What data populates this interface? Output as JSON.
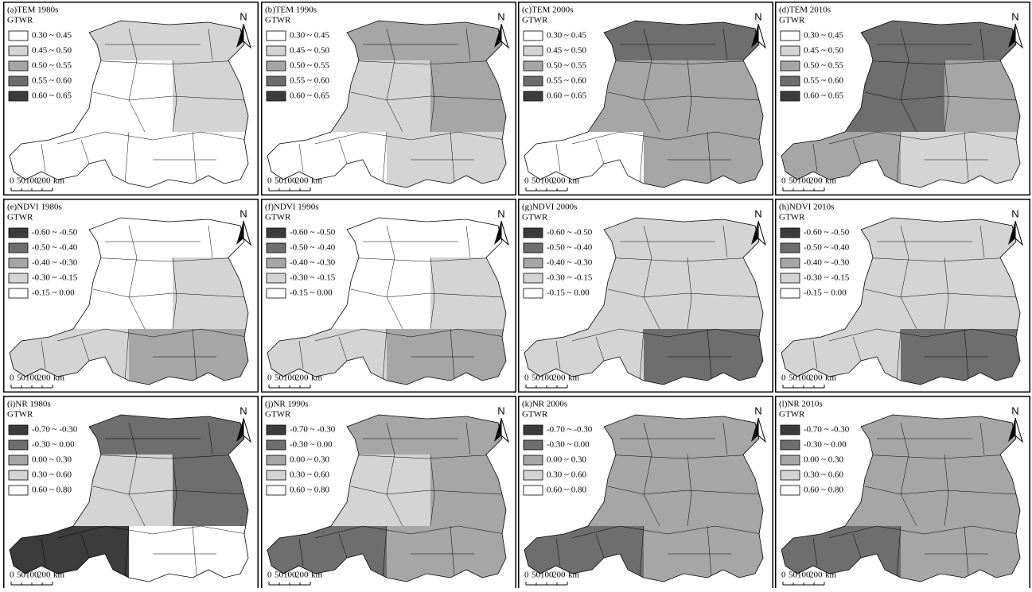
{
  "panels": [
    {
      "title": "(a)TEM 1980s",
      "legend": {
        "title": "GTWR",
        "items": [
          {
            "label": "0.30 ~ 0.45",
            "color": "#ffffff"
          },
          {
            "label": "0.45 ~ 0.50",
            "color": "#d4d4d4"
          },
          {
            "label": "0.50 ~ 0.55",
            "color": "#a6a6a6"
          },
          {
            "label": "0.55 ~ 0.60",
            "color": "#6e6e6e"
          },
          {
            "label": "0.60 ~ 0.65",
            "color": "#3c3c3c"
          }
        ]
      },
      "north": "N",
      "scale_bar": [
        "0",
        "50100",
        "200",
        "km"
      ]
    },
    {
      "title": "(b)TEM 1990s",
      "legend": {
        "title": "GTWR",
        "items": [
          {
            "label": "0.30 ~ 0.45",
            "color": "#ffffff"
          },
          {
            "label": "0.45 ~ 0.50",
            "color": "#d4d4d4"
          },
          {
            "label": "0.50 ~ 0.55",
            "color": "#a6a6a6"
          },
          {
            "label": "0.55 ~ 0.60",
            "color": "#6e6e6e"
          },
          {
            "label": "0.60 ~ 0.65",
            "color": "#3c3c3c"
          }
        ]
      },
      "north": "N",
      "scale_bar": [
        "0",
        "50100",
        "200",
        "km"
      ]
    },
    {
      "title": "(c)TEM 2000s",
      "legend": {
        "title": "GTWR",
        "items": [
          {
            "label": "0.30 ~ 0.45",
            "color": "#ffffff"
          },
          {
            "label": "0.45 ~ 0.50",
            "color": "#d4d4d4"
          },
          {
            "label": "0.50 ~ 0.55",
            "color": "#a6a6a6"
          },
          {
            "label": "0.55 ~ 0.60",
            "color": "#6e6e6e"
          },
          {
            "label": "0.60 ~ 0.65",
            "color": "#3c3c3c"
          }
        ]
      },
      "north": "N",
      "scale_bar": [
        "0",
        "50100",
        "200",
        "km"
      ]
    },
    {
      "title": "(d)TEM 2010s",
      "legend": {
        "title": "GTWR",
        "items": [
          {
            "label": "0.30 ~ 0.45",
            "color": "#ffffff"
          },
          {
            "label": "0.45 ~ 0.50",
            "color": "#d4d4d4"
          },
          {
            "label": "0.50 ~ 0.55",
            "color": "#a6a6a6"
          },
          {
            "label": "0.55 ~ 0.60",
            "color": "#6e6e6e"
          },
          {
            "label": "0.60 ~ 0.65",
            "color": "#3c3c3c"
          }
        ]
      },
      "north": "N",
      "scale_bar": [
        "0",
        "50100",
        "200",
        "km"
      ]
    },
    {
      "title": "(e)NDVI 1980s",
      "legend": {
        "title": "GTWR",
        "items": [
          {
            "label": "-0.60 ~ -0.50",
            "color": "#3c3c3c"
          },
          {
            "label": "-0.50 ~ -0.40",
            "color": "#6e6e6e"
          },
          {
            "label": "-0.40 ~ -0.30",
            "color": "#a6a6a6"
          },
          {
            "label": "-0.30 ~ -0.15",
            "color": "#d4d4d4"
          },
          {
            "label": "-0.15 ~ 0.00",
            "color": "#ffffff"
          }
        ]
      },
      "north": "N",
      "scale_bar": [
        "0",
        "50100",
        "200",
        "km"
      ]
    },
    {
      "title": "(f)NDVI 1990s",
      "legend": {
        "title": "GTWR",
        "items": [
          {
            "label": "-0.60 ~ -0.50",
            "color": "#3c3c3c"
          },
          {
            "label": "-0.50 ~ -0.40",
            "color": "#6e6e6e"
          },
          {
            "label": "-0.40 ~ -0.30",
            "color": "#a6a6a6"
          },
          {
            "label": "-0.30 ~ -0.15",
            "color": "#d4d4d4"
          },
          {
            "label": "-0.15 ~ 0.00",
            "color": "#ffffff"
          }
        ]
      },
      "north": "N",
      "scale_bar": [
        "0",
        "50100",
        "200",
        "km"
      ]
    },
    {
      "title": "(g)NDVI 2000s",
      "legend": {
        "title": "GTWR",
        "items": [
          {
            "label": "-0.60 ~ -0.50",
            "color": "#3c3c3c"
          },
          {
            "label": "-0.50 ~ -0.40",
            "color": "#6e6e6e"
          },
          {
            "label": "-0.40 ~ -0.30",
            "color": "#a6a6a6"
          },
          {
            "label": "-0.30 ~ -0.15",
            "color": "#d4d4d4"
          },
          {
            "label": "-0.15 ~ 0.00",
            "color": "#ffffff"
          }
        ]
      },
      "north": "N",
      "scale_bar": [
        "0",
        "50100",
        "200",
        "km"
      ]
    },
    {
      "title": "(h)NDVI 2010s",
      "legend": {
        "title": "GTWR",
        "items": [
          {
            "label": "-0.60 ~ -0.50",
            "color": "#3c3c3c"
          },
          {
            "label": "-0.50 ~ -0.40",
            "color": "#6e6e6e"
          },
          {
            "label": "-0.40 ~ -0.30",
            "color": "#a6a6a6"
          },
          {
            "label": "-0.30 ~ -0.15",
            "color": "#d4d4d4"
          },
          {
            "label": "-0.15 ~ 0.00",
            "color": "#ffffff"
          }
        ]
      },
      "north": "N",
      "scale_bar": [
        "0",
        "50100",
        "200",
        "km"
      ]
    },
    {
      "title": "(i)NR 1980s",
      "legend": {
        "title": "GTWR",
        "items": [
          {
            "label": "-0.70 ~ -0.30",
            "color": "#3c3c3c"
          },
          {
            "label": "-0.30 ~ 0.00",
            "color": "#6e6e6e"
          },
          {
            "label": "0.00 ~ 0.30",
            "color": "#a6a6a6"
          },
          {
            "label": "0.30 ~ 0.60",
            "color": "#d4d4d4"
          },
          {
            "label": "0.60 ~ 0.80",
            "color": "#ffffff"
          }
        ]
      },
      "north": "N",
      "scale_bar": [
        "0",
        "50100",
        "200",
        "km"
      ]
    },
    {
      "title": "(j)NR 1990s",
      "legend": {
        "title": "GTWR",
        "items": [
          {
            "label": "-0.70 ~ -0.30",
            "color": "#3c3c3c"
          },
          {
            "label": "-0.30 ~ 0.00",
            "color": "#6e6e6e"
          },
          {
            "label": "0.00 ~ 0.30",
            "color": "#a6a6a6"
          },
          {
            "label": "0.30 ~ 0.60",
            "color": "#d4d4d4"
          },
          {
            "label": "0.60 ~ 0.80",
            "color": "#ffffff"
          }
        ]
      },
      "north": "N",
      "scale_bar": [
        "0",
        "50100",
        "200",
        "km"
      ]
    },
    {
      "title": "(k)NR 2000s",
      "legend": {
        "title": "GTWR",
        "items": [
          {
            "label": "-0.70 ~ -0.30",
            "color": "#3c3c3c"
          },
          {
            "label": "-0.30 ~ 0.00",
            "color": "#6e6e6e"
          },
          {
            "label": "0.00 ~ 0.30",
            "color": "#a6a6a6"
          },
          {
            "label": "0.30 ~ 0.60",
            "color": "#d4d4d4"
          },
          {
            "label": "0.60 ~ 0.80",
            "color": "#ffffff"
          }
        ]
      },
      "north": "N",
      "scale_bar": [
        "0",
        "50100",
        "200",
        "km"
      ]
    },
    {
      "title": "(l)NR 2010s",
      "legend": {
        "title": "GTWR",
        "items": [
          {
            "label": "-0.70 ~ -0.30",
            "color": "#3c3c3c"
          },
          {
            "label": "-0.30 ~ 0.00",
            "color": "#6e6e6e"
          },
          {
            "label": "0.00 ~ 0.30",
            "color": "#a6a6a6"
          },
          {
            "label": "0.30 ~ 0.60",
            "color": "#d4d4d4"
          },
          {
            "label": "0.60 ~ 0.80",
            "color": "#ffffff"
          }
        ]
      },
      "north": "N",
      "scale_bar": [
        "0",
        "50100",
        "200",
        "km"
      ]
    }
  ]
}
